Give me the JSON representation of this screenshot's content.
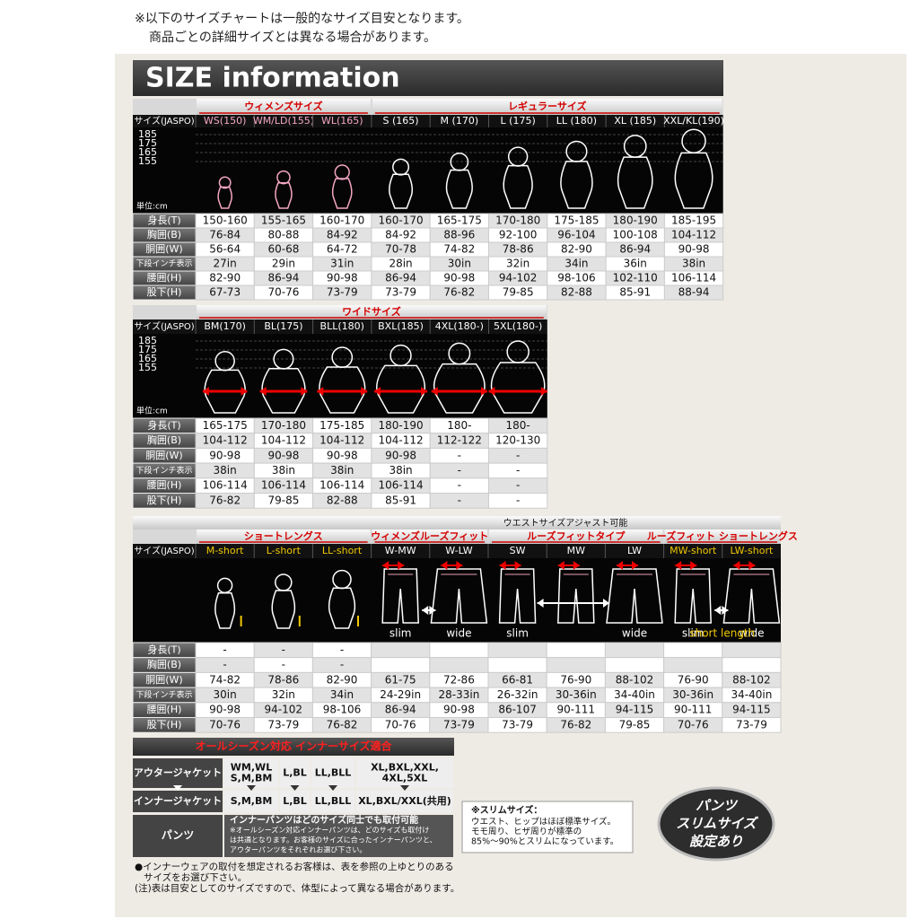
{
  "notes": [
    "※以下のサイズチャートは一般的なサイズ目安となります。",
    "商品ごとの詳細サイズとは異なる場合があります。"
  ],
  "title": "SIZE information",
  "table1": {
    "header_label": "サイズ(JASPO)",
    "scale_labels": [
      "185",
      "175",
      "165",
      "155"
    ],
    "unit_label": "単位:cm",
    "groups": [
      {
        "label": "ウィメンズサイズ",
        "size_color": "#f4a6c4",
        "sizes": [
          "WS(150)",
          "WM/LD(155)",
          "WL(165)"
        ]
      },
      {
        "label": "レギュラーサイズ",
        "size_color": "#ffffff",
        "sizes": [
          "S (165)",
          "M (170)",
          "L (175)",
          "LL (180)",
          "XL (185)",
          "XXL/KL(190)"
        ]
      }
    ],
    "rows": [
      {
        "label": "身長(T)",
        "values": [
          "150-160",
          "155-165",
          "160-170",
          "160-170",
          "165-175",
          "170-180",
          "175-185",
          "180-190",
          "185-195"
        ]
      },
      {
        "label": "胸囲(B)",
        "values": [
          "76-84",
          "80-88",
          "84-92",
          "84-92",
          "88-96",
          "92-100",
          "96-104",
          "100-108",
          "104-112"
        ]
      },
      {
        "label": "胴囲(W)",
        "values": [
          "56-64",
          "60-68",
          "64-72",
          "70-78",
          "74-82",
          "78-86",
          "82-90",
          "86-94",
          "90-98"
        ]
      },
      {
        "label": "下段インチ表示",
        "values": [
          "27in",
          "29in",
          "31in",
          "28in",
          "30in",
          "32in",
          "34in",
          "36in",
          "38in"
        ]
      },
      {
        "label": "腰囲(H)",
        "values": [
          "82-90",
          "86-94",
          "90-98",
          "86-94",
          "90-98",
          "94-102",
          "98-106",
          "102-110",
          "106-114"
        ]
      },
      {
        "label": "股下(H)",
        "values": [
          "67-73",
          "70-76",
          "73-79",
          "73-79",
          "76-82",
          "79-85",
          "82-88",
          "85-91",
          "88-94"
        ]
      }
    ]
  },
  "table2": {
    "header_label": "サイズ(JASPO)",
    "scale_labels": [
      "185",
      "175",
      "165",
      "155"
    ],
    "unit_label": "単位:cm",
    "groups": [
      {
        "label": "ワイドサイズ",
        "size_color": "#ffffff",
        "sizes": [
          "BM(170)",
          "BL(175)",
          "BLL(180)",
          "BXL(185)",
          "4XL(180-)",
          "5XL(180-)"
        ]
      }
    ],
    "rows": [
      {
        "label": "身長(T)",
        "values": [
          "165-175",
          "170-180",
          "175-185",
          "180-190",
          "180-",
          "180-"
        ]
      },
      {
        "label": "胸囲(B)",
        "values": [
          "104-112",
          "104-112",
          "104-112",
          "104-112",
          "112-122",
          "120-130"
        ]
      },
      {
        "label": "胴囲(W)",
        "values": [
          "90-98",
          "90-98",
          "90-98",
          "90-98",
          "-",
          "-"
        ]
      },
      {
        "label": "下段インチ表示",
        "values": [
          "38in",
          "38in",
          "38in",
          "38in",
          "-",
          "-"
        ]
      },
      {
        "label": "腰囲(H)",
        "values": [
          "106-114",
          "106-114",
          "106-114",
          "106-114",
          "-",
          "-"
        ]
      },
      {
        "label": "股下(H)",
        "values": [
          "76-82",
          "79-85",
          "82-88",
          "85-91",
          "-",
          "-"
        ]
      }
    ]
  },
  "table3": {
    "note": "ウエストサイズアジャスト可能",
    "header_label": "サイズ(JASPO)",
    "groups": [
      {
        "label": "ショートレングス",
        "size_color": "#f0c800",
        "sizes": [
          "M-short",
          "L-short",
          "LL-short"
        ]
      },
      {
        "label": "ウィメンズルーズフィット",
        "size_color": "#ffffff",
        "sizes": [
          "W-MW",
          "W-LW"
        ]
      },
      {
        "label": "ルーズフィットタイプ",
        "size_color": "#ffffff",
        "sizes": [
          "SW",
          "MW",
          "LW"
        ]
      },
      {
        "label": "ルーズフィット ショートレングス",
        "size_color": "#f0c800",
        "sizes": [
          "MW-short",
          "LW-short"
        ]
      }
    ],
    "image_labels": [
      null,
      null,
      null,
      "slim",
      "wide",
      "slim",
      null,
      "wide",
      "slim",
      "wide"
    ],
    "image_caption": "short length",
    "rows": [
      {
        "label": "身長(T)",
        "values": [
          "-",
          "-",
          "-",
          null,
          null,
          null,
          null,
          null,
          null,
          null
        ]
      },
      {
        "label": "胸囲(B)",
        "values": [
          "-",
          "-",
          "-",
          null,
          null,
          null,
          null,
          null,
          null,
          null
        ]
      },
      {
        "label": "胴囲(W)",
        "values": [
          "74-82",
          "78-86",
          "82-90",
          "61-75",
          "72-86",
          "66-81",
          "76-90",
          "88-102",
          "76-90",
          "88-102"
        ]
      },
      {
        "label": "下段インチ表示",
        "values": [
          "30in",
          "32in",
          "34in",
          "24-29in",
          "28-33in",
          "26-32in",
          "30-36in",
          "34-40in",
          "30-36in",
          "34-40in"
        ]
      },
      {
        "label": "腰囲(H)",
        "values": [
          "90-98",
          "94-102",
          "98-106",
          "86-94",
          "90-98",
          "86-107",
          "90-111",
          "94-115",
          "90-111",
          "94-115"
        ]
      },
      {
        "label": "股下(H)",
        "values": [
          "70-76",
          "73-79",
          "76-82",
          "70-76",
          "73-79",
          "73-79",
          "76-82",
          "79-85",
          "70-76",
          "73-79"
        ]
      }
    ]
  },
  "inner": {
    "title": "オールシーズン対応 インナーサイズ適合",
    "rows": [
      {
        "label": "アウタージャケット",
        "cells": [
          [
            "WM,WL",
            "S,M,BM"
          ],
          [
            "L,BL"
          ],
          [
            "LL,BLL"
          ],
          [
            "XL,BXL,XXL,",
            "4XL,5XL"
          ]
        ]
      },
      {
        "label": "インナージャケット",
        "cells": [
          [
            "S,M,BM"
          ],
          [
            "L,BL"
          ],
          [
            "LL,BLL"
          ],
          [
            "XL,BXL/XXL(共用)"
          ]
        ]
      }
    ],
    "pants": {
      "label": "パンツ",
      "lines": [
        "インナーパンツはどのサイズ同士でも取付可能",
        "※オールシーズン対応インナーパンツは、どのサイズも取付け",
        "は共通となります。お客様のサイズに合ったインナーパンツと、",
        "アウターパンツをそれぞれお選び下さい。"
      ]
    }
  },
  "slim": {
    "title": "※スリムサイズ：",
    "lines": [
      "ウエスト、ヒップはほぼ標準サイズ。",
      "モモ周り、ヒザ周りが標準の",
      "85%〜90%とスリムになっています。"
    ]
  },
  "badge": [
    "パンツ",
    "スリムサイズ",
    "設定あり"
  ],
  "footer": [
    "●インナーウェアの取付を想定されるお客様は、表を参照の上ゆとりのある",
    "サイズをお選び下さい。",
    "(注)表は目安としてのサイズですので、体型によって異なる場合があります。"
  ]
}
